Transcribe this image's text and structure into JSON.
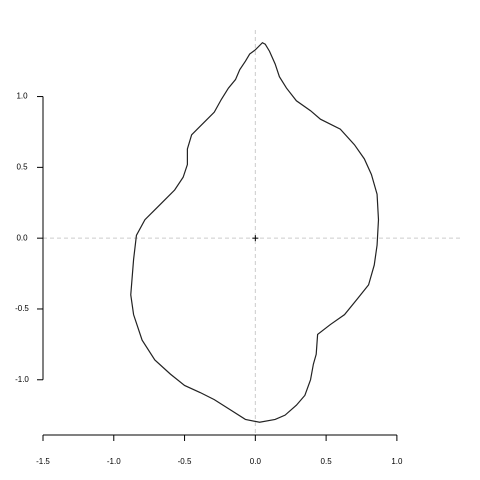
{
  "chart_data": {
    "type": "line",
    "x": [
      0.02,
      0.05,
      0.07,
      0.1,
      0.14,
      0.17,
      0.22,
      0.29,
      0.39,
      0.46,
      0.6,
      0.7,
      0.77,
      0.82,
      0.86,
      0.87,
      0.86,
      0.84,
      0.8,
      0.72,
      0.63,
      0.53,
      0.44,
      0.43,
      0.41,
      0.39,
      0.35,
      0.29,
      0.21,
      0.14,
      0.03,
      -0.07,
      -0.18,
      -0.29,
      -0.39,
      -0.5,
      -0.6,
      -0.71,
      -0.8,
      -0.86,
      -0.88,
      -0.86,
      -0.84,
      -0.78,
      -0.67,
      -0.57,
      -0.51,
      -0.48,
      -0.48,
      -0.45,
      -0.36,
      -0.29,
      -0.24,
      -0.19,
      -0.14,
      -0.11,
      -0.07,
      -0.04,
      0.0,
      0.02
    ],
    "series": [
      {
        "color": "#222222",
        "values": [
          1.35,
          1.38,
          1.37,
          1.32,
          1.23,
          1.14,
          1.06,
          0.97,
          0.9,
          0.84,
          0.77,
          0.66,
          0.56,
          0.45,
          0.31,
          0.13,
          -0.05,
          -0.19,
          -0.33,
          -0.43,
          -0.54,
          -0.61,
          -0.68,
          -0.82,
          -0.89,
          -1.0,
          -1.11,
          -1.18,
          -1.25,
          -1.28,
          -1.3,
          -1.28,
          -1.21,
          -1.14,
          -1.09,
          -1.04,
          -0.96,
          -0.86,
          -0.72,
          -0.54,
          -0.4,
          -0.15,
          0.02,
          0.13,
          0.24,
          0.34,
          0.43,
          0.52,
          0.63,
          0.73,
          0.82,
          0.89,
          0.98,
          1.06,
          1.12,
          1.19,
          1.25,
          1.3,
          1.33,
          1.35
        ]
      }
    ],
    "center": {
      "x": 0,
      "y": 0
    },
    "hlines": [
      0
    ],
    "vlines": [
      0
    ],
    "xlim": [
      -1.5,
      1.46
    ],
    "ylim": [
      -1.39,
      1.47
    ],
    "xticks": [
      {
        "value": -1.5,
        "label": "-1.5"
      },
      {
        "value": -1,
        "label": "-1.0"
      },
      -0.5,
      {
        "value": 0,
        "label": "0.0"
      },
      0.5,
      {
        "value": 1,
        "label": "1.0"
      }
    ],
    "yticks": [
      {
        "value": -1,
        "label": "-1.0"
      },
      -0.5,
      {
        "value": 0,
        "label": "0.0"
      },
      0.5,
      {
        "value": 1,
        "label": "1.0"
      }
    ],
    "grid": false
  }
}
